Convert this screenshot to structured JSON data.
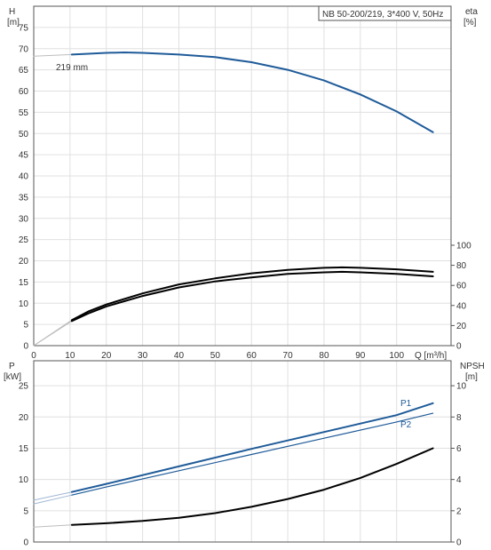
{
  "header": {
    "title": "NB 50-200/219, 3*400 V, 50Hz"
  },
  "colors": {
    "blue": "#1f5b99",
    "blue_light": "#9fb7d3",
    "black": "#000000",
    "gray": "#bdbdbd",
    "grid": "#e0e0e0"
  },
  "chart_data": [
    {
      "type": "line",
      "name": "upper",
      "left_axis": {
        "label": "H",
        "unit": "[m]",
        "range": [
          0,
          80
        ],
        "ticks": [
          0,
          5,
          10,
          15,
          20,
          25,
          30,
          35,
          40,
          45,
          50,
          55,
          60,
          65,
          70,
          75
        ]
      },
      "right_axis": {
        "label": "eta",
        "unit": "[%]",
        "range": [
          0,
          100
        ],
        "ticks": [
          0,
          20,
          40,
          60,
          80,
          100
        ]
      },
      "x_axis": {
        "label": "Q [m³/h]",
        "range": [
          0,
          115
        ],
        "ticks": [
          0,
          10,
          20,
          30,
          40,
          50,
          60,
          70,
          80,
          90,
          100
        ]
      },
      "annotation": "219 mm",
      "series": [
        {
          "role": "head",
          "axis": "left",
          "color": "#1f5b99",
          "x": [
            0,
            10.5,
            15,
            20,
            25,
            30,
            40,
            50,
            60,
            70,
            80,
            90,
            100,
            110
          ],
          "y": [
            68.2,
            68.6,
            68.8,
            69.0,
            69.1,
            69.0,
            68.6,
            68.0,
            66.8,
            65.0,
            62.5,
            59.2,
            55.2,
            50.3
          ]
        },
        {
          "role": "eta-1",
          "axis": "right",
          "x": [
            0,
            10.5,
            15,
            20,
            30,
            40,
            50,
            60,
            70,
            80,
            85,
            90,
            100,
            110
          ],
          "y": [
            0,
            25.5,
            34,
            41,
            52,
            61,
            67,
            72,
            75.5,
            77.5,
            78,
            77.5,
            76,
            73.5
          ]
        },
        {
          "role": "eta-2",
          "axis": "right",
          "x": [
            0,
            10.5,
            15,
            20,
            30,
            40,
            50,
            60,
            70,
            80,
            85,
            90,
            100,
            110
          ],
          "y": [
            0,
            24.5,
            32,
            39,
            49.5,
            58,
            64,
            68,
            71.5,
            73,
            73.5,
            73,
            71.5,
            69
          ]
        }
      ]
    },
    {
      "type": "line",
      "name": "lower",
      "left_axis": {
        "label": "P",
        "unit": "[kW]",
        "range": [
          0,
          29
        ],
        "ticks": [
          0,
          5,
          10,
          15,
          20,
          25
        ]
      },
      "right_axis": {
        "label": "NPSH",
        "unit": "[m]",
        "range": [
          0,
          11.6
        ],
        "ticks": [
          0,
          2,
          4,
          6,
          8,
          10
        ]
      },
      "x_axis": {
        "range": [
          0,
          115
        ],
        "ticks": [
          0,
          10,
          20,
          30,
          40,
          50,
          60,
          70,
          80,
          90,
          100
        ]
      },
      "series": [
        {
          "name": "P1",
          "axis": "left",
          "color": "#1f5b99",
          "x": [
            0,
            10.5,
            20,
            40,
            60,
            80,
            100,
            110
          ],
          "y": [
            6.7,
            8.0,
            9.3,
            12.1,
            14.9,
            17.6,
            20.3,
            22.2
          ]
        },
        {
          "name": "P2",
          "axis": "left",
          "color": "#1f5b99",
          "x": [
            0,
            10.5,
            20,
            40,
            60,
            80,
            100,
            110
          ],
          "y": [
            6.1,
            7.5,
            8.8,
            11.4,
            14.0,
            16.6,
            19.2,
            20.6
          ]
        },
        {
          "role": "NPSH",
          "axis": "right",
          "color": "#000000",
          "x": [
            0,
            10.5,
            20,
            30,
            40,
            50,
            60,
            70,
            80,
            90,
            100,
            110
          ],
          "y": [
            0.95,
            1.1,
            1.2,
            1.35,
            1.55,
            1.85,
            2.25,
            2.75,
            3.35,
            4.1,
            5.0,
            6.0
          ]
        }
      ]
    }
  ]
}
